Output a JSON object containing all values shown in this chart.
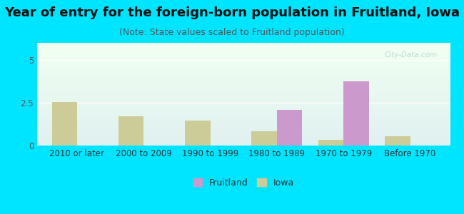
{
  "title": "Year of entry for the foreign-born population in Fruitland, Iowa",
  "subtitle": "(Note: State values scaled to Fruitland population)",
  "categories": [
    "2010 or later",
    "2000 to 2009",
    "1990 to 1999",
    "1980 to 1989",
    "1970 to 1979",
    "Before 1970"
  ],
  "fruitland_values": [
    0,
    0,
    0,
    2.1,
    3.75,
    0
  ],
  "iowa_values": [
    2.55,
    1.7,
    1.45,
    0.85,
    0.35,
    0.55
  ],
  "fruitland_color": "#cc99cc",
  "iowa_color": "#cccc99",
  "background_outer": "#00e5ff",
  "background_chart_top": "#f0fff0",
  "background_chart_bottom": "#e0f0f0",
  "ylim": [
    0,
    6
  ],
  "yticks": [
    0,
    2.5,
    5
  ],
  "bar_width": 0.38,
  "title_fontsize": 13,
  "subtitle_fontsize": 9,
  "tick_fontsize": 8.5,
  "legend_fontsize": 9
}
